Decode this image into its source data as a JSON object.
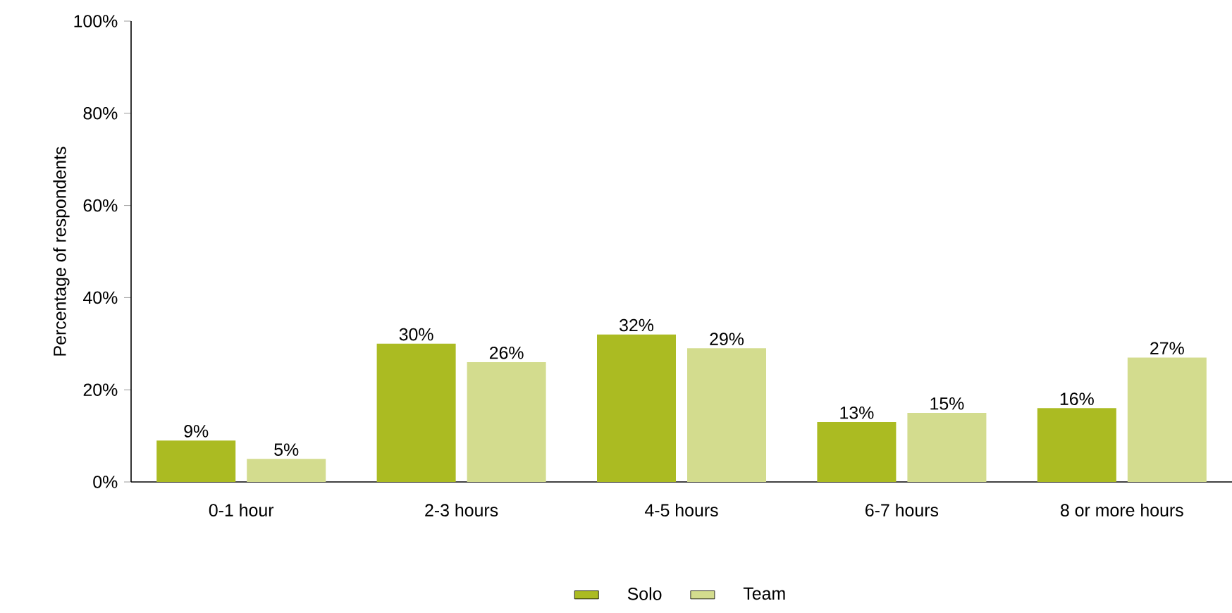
{
  "chart_data": {
    "type": "bar",
    "ylabel": "Percentage of respondents",
    "categories": [
      "0-1 hour",
      "2-3 hours",
      "4-5 hours",
      "6-7 hours",
      "8 or more hours"
    ],
    "series": [
      {
        "name": "Solo",
        "color": "#abbb22",
        "values": [
          9,
          30,
          32,
          13,
          16
        ],
        "value_labels": [
          "9%",
          "30%",
          "32%",
          "13%",
          "16%"
        ]
      },
      {
        "name": "Team",
        "color": "#d3dc8e",
        "values": [
          5,
          26,
          29,
          15,
          27
        ],
        "value_labels": [
          "5%",
          "26%",
          "29%",
          "15%",
          "27%"
        ]
      }
    ],
    "ylim": [
      0,
      100
    ],
    "yticks": [
      {
        "value": 0,
        "label": "0%"
      },
      {
        "value": 20,
        "label": "20%"
      },
      {
        "value": 40,
        "label": "40%"
      },
      {
        "value": 60,
        "label": "60%"
      },
      {
        "value": 80,
        "label": "80%"
      },
      {
        "value": 100,
        "label": "100%"
      }
    ],
    "grid": false,
    "legend": "bottom"
  }
}
